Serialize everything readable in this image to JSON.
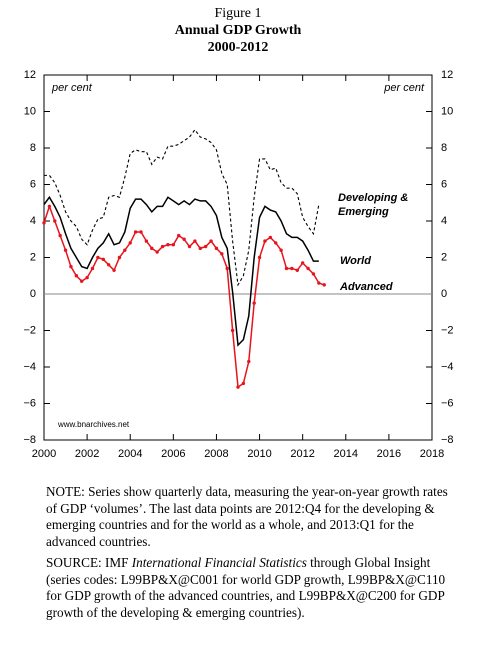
{
  "chart_data": {
    "type": "line",
    "title_lines": [
      "Figure 1",
      "Annual GDP Growth",
      "2000-2012"
    ],
    "y_label": "per cent",
    "y2_label": "per cent",
    "watermark": "www.bnarchives.net",
    "x": [
      2000,
      2000.25,
      2000.5,
      2000.75,
      2001,
      2001.25,
      2001.5,
      2001.75,
      2002,
      2002.25,
      2002.5,
      2002.75,
      2003,
      2003.25,
      2003.5,
      2003.75,
      2004,
      2004.25,
      2004.5,
      2004.75,
      2005,
      2005.25,
      2005.5,
      2005.75,
      2006,
      2006.25,
      2006.5,
      2006.75,
      2007,
      2007.25,
      2007.5,
      2007.75,
      2008,
      2008.25,
      2008.5,
      2008.75,
      2009,
      2009.25,
      2009.5,
      2009.75,
      2010,
      2010.25,
      2010.5,
      2010.75,
      2011,
      2011.25,
      2011.5,
      2011.75,
      2012,
      2012.25,
      2012.5,
      2012.75,
      2013
    ],
    "series": [
      {
        "name": "Developing & Emerging",
        "color": "#000000",
        "dash": true,
        "markers": false,
        "values": [
          6.5,
          6.5,
          6.1,
          5.4,
          4.5,
          4.0,
          3.7,
          3.0,
          2.7,
          3.5,
          4.1,
          4.2,
          5.3,
          5.4,
          5.3,
          6.4,
          7.7,
          7.9,
          7.8,
          7.8,
          7.1,
          7.5,
          7.4,
          8.1,
          8.1,
          8.2,
          8.4,
          8.6,
          9.0,
          8.6,
          8.5,
          8.3,
          7.9,
          6.6,
          6.0,
          2.9,
          0.5,
          1.0,
          2.4,
          5.3,
          7.4,
          7.4,
          6.8,
          6.9,
          6.1,
          5.8,
          5.8,
          5.5,
          4.2,
          3.7,
          3.3,
          4.9,
          null
        ]
      },
      {
        "name": "World",
        "color": "#000000",
        "dash": false,
        "markers": false,
        "values": [
          4.9,
          5.3,
          4.8,
          4.2,
          3.3,
          2.5,
          2.0,
          1.5,
          1.4,
          2.0,
          2.5,
          2.8,
          3.3,
          2.7,
          2.8,
          3.4,
          4.7,
          5.2,
          5.2,
          4.9,
          4.5,
          4.8,
          4.8,
          5.3,
          5.1,
          4.9,
          5.1,
          4.9,
          5.2,
          5.1,
          5.1,
          4.8,
          4.3,
          3.1,
          2.5,
          0.1,
          -2.8,
          -2.5,
          -1.2,
          2.0,
          4.2,
          4.8,
          4.6,
          4.5,
          4.0,
          3.3,
          3.1,
          3.1,
          2.9,
          2.4,
          1.8,
          1.8,
          null
        ]
      },
      {
        "name": "Advanced",
        "color": "#e8141c",
        "dash": false,
        "markers": true,
        "values": [
          3.9,
          4.8,
          4.0,
          3.2,
          2.4,
          1.5,
          1.0,
          0.7,
          0.9,
          1.4,
          2.0,
          1.9,
          1.6,
          1.3,
          2.0,
          2.4,
          2.8,
          3.4,
          3.4,
          2.9,
          2.5,
          2.3,
          2.6,
          2.7,
          2.7,
          3.2,
          3.0,
          2.6,
          2.9,
          2.5,
          2.6,
          2.9,
          2.5,
          2.2,
          1.4,
          -2.0,
          -5.1,
          -4.9,
          -3.7,
          -0.5,
          2.0,
          2.9,
          3.1,
          2.8,
          2.4,
          1.4,
          1.4,
          1.3,
          1.7,
          1.4,
          1.1,
          0.6,
          0.5
        ]
      }
    ],
    "xlim": [
      2000,
      2018
    ],
    "xticks": [
      2000,
      2002,
      2004,
      2006,
      2008,
      2010,
      2012,
      2014,
      2016,
      2018
    ],
    "ylim": [
      -8,
      12
    ],
    "yticks": [
      {
        "value": -8,
        "label": "−8"
      },
      {
        "value": -6,
        "label": "−6"
      },
      {
        "value": -4,
        "label": "−4"
      },
      {
        "value": -2,
        "label": "−2"
      },
      0,
      2,
      4,
      6,
      8,
      10,
      12
    ],
    "y2lim": [
      -8,
      12
    ],
    "y2ticks": [
      {
        "value": -8,
        "label": "−8"
      },
      {
        "value": -6,
        "label": "−6"
      },
      {
        "value": -4,
        "label": "−4"
      },
      {
        "value": -2,
        "label": "−2"
      },
      0,
      2,
      4,
      6,
      8,
      10,
      12
    ],
    "reference_line": 0,
    "grid": false
  },
  "notes": {
    "note": "NOTE: Series show quarterly data, measuring the year-on-year growth rates of GDP ‘volumes’. The last data points are 2012:Q4 for the developing & emerging countries and for the world as a whole, and 2013:Q1 for the advanced countries.",
    "source_prefix": "SOURCE: IMF ",
    "source_italic": "International Financial Statistics",
    "source_rest": " through Global Insight (series codes: L99BP&X@C001 for world GDP growth, L99BP&X@C110 for GDP growth of the advanced countries, and L99BP&X@C200 for GDP growth of the developing & emerging countries)."
  }
}
